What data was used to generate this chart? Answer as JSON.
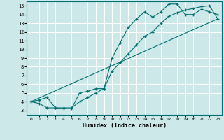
{
  "xlabel": "Humidex (Indice chaleur)",
  "bg_color": "#cce8e8",
  "grid_color": "#ffffff",
  "line_color": "#007070",
  "xlim": [
    -0.5,
    23.5
  ],
  "ylim": [
    2.5,
    15.5
  ],
  "xticks": [
    0,
    1,
    2,
    3,
    4,
    5,
    6,
    7,
    8,
    9,
    10,
    11,
    12,
    13,
    14,
    15,
    16,
    17,
    18,
    19,
    20,
    21,
    22,
    23
  ],
  "yticks": [
    3,
    4,
    5,
    6,
    7,
    8,
    9,
    10,
    11,
    12,
    13,
    14,
    15
  ],
  "line1_x": [
    0,
    1,
    2,
    3,
    4,
    5,
    6,
    7,
    8,
    9,
    10,
    11,
    12,
    13,
    14,
    15,
    16,
    17,
    18,
    19,
    20,
    21,
    22,
    23
  ],
  "line1_y": [
    4.0,
    3.8,
    3.3,
    3.3,
    3.2,
    3.2,
    5.0,
    5.2,
    5.5,
    5.5,
    9.0,
    10.8,
    12.5,
    13.5,
    14.3,
    13.7,
    14.3,
    15.2,
    15.2,
    14.0,
    14.0,
    14.6,
    14.3,
    14.0
  ],
  "line2_x": [
    0,
    1,
    2,
    3,
    4,
    5,
    6,
    7,
    8,
    9,
    10,
    11,
    12,
    13,
    14,
    15,
    16,
    17,
    18,
    19,
    20,
    21,
    22,
    23
  ],
  "line2_y": [
    4.0,
    4.2,
    4.5,
    3.3,
    3.3,
    3.3,
    4.0,
    4.5,
    5.0,
    5.5,
    7.5,
    8.5,
    9.5,
    10.5,
    11.5,
    12.0,
    13.0,
    13.8,
    14.2,
    14.5,
    14.7,
    14.9,
    15.0,
    13.5
  ],
  "line3_x": [
    0,
    23
  ],
  "line3_y": [
    4.0,
    13.5
  ]
}
